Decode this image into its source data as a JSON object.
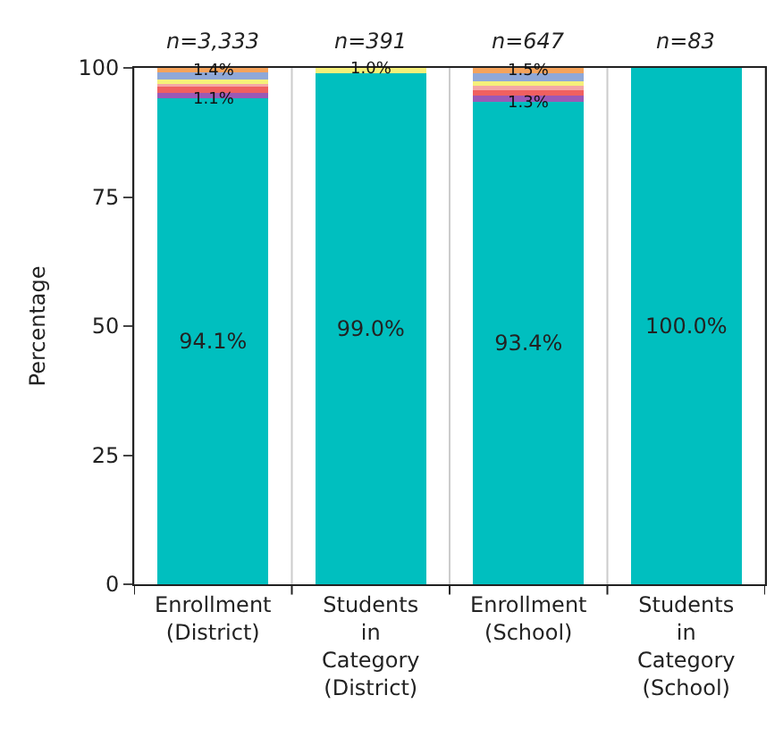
{
  "chart_data": {
    "type": "bar",
    "stacked": true,
    "ylabel": "Percentage",
    "categories": [
      "Enrollment\n(District)",
      "Students\nin\nCategory\n(District)",
      "Enrollment\n(School)",
      "Students\nin\nCategory\n(School)"
    ],
    "ylim": [
      0,
      100
    ],
    "yticks": [
      0,
      25,
      50,
      75,
      100
    ],
    "grid": false,
    "annotations": [
      "n=3,333",
      "n=391",
      "n=647",
      "n=83"
    ],
    "series": [
      {
        "color": "#00bfbf",
        "values": [
          94.1,
          99.0,
          93.4,
          100.0
        ],
        "value_labels": [
          "94.1%",
          "99.0%",
          "93.4%",
          "100.0%"
        ]
      },
      {
        "color": "#9b59b6",
        "values": [
          1.1,
          0,
          1.3,
          0
        ],
        "value_labels": [
          "1.1%",
          null,
          "1.3%",
          null
        ]
      },
      {
        "color": "#f06060",
        "values": [
          1.2,
          0,
          1.0,
          0
        ],
        "value_labels": [
          null,
          null,
          null,
          null
        ]
      },
      {
        "color": "#f4a6a6",
        "values": [
          0.8,
          0,
          0.8,
          0
        ],
        "value_labels": [
          null,
          null,
          null,
          null
        ]
      },
      {
        "color": "#f5f07a",
        "values": [
          0.5,
          1.0,
          0.9,
          0
        ],
        "value_labels": [
          null,
          "1.0%",
          null,
          null
        ]
      },
      {
        "color": "#8fa8d8",
        "values": [
          1.4,
          0,
          1.5,
          0
        ],
        "value_labels": [
          "1.4%",
          null,
          "1.5%",
          null
        ]
      },
      {
        "color": "#f5a35b",
        "values": [
          0.9,
          0,
          1.1,
          0
        ],
        "value_labels": [
          null,
          null,
          null,
          null
        ]
      }
    ]
  }
}
